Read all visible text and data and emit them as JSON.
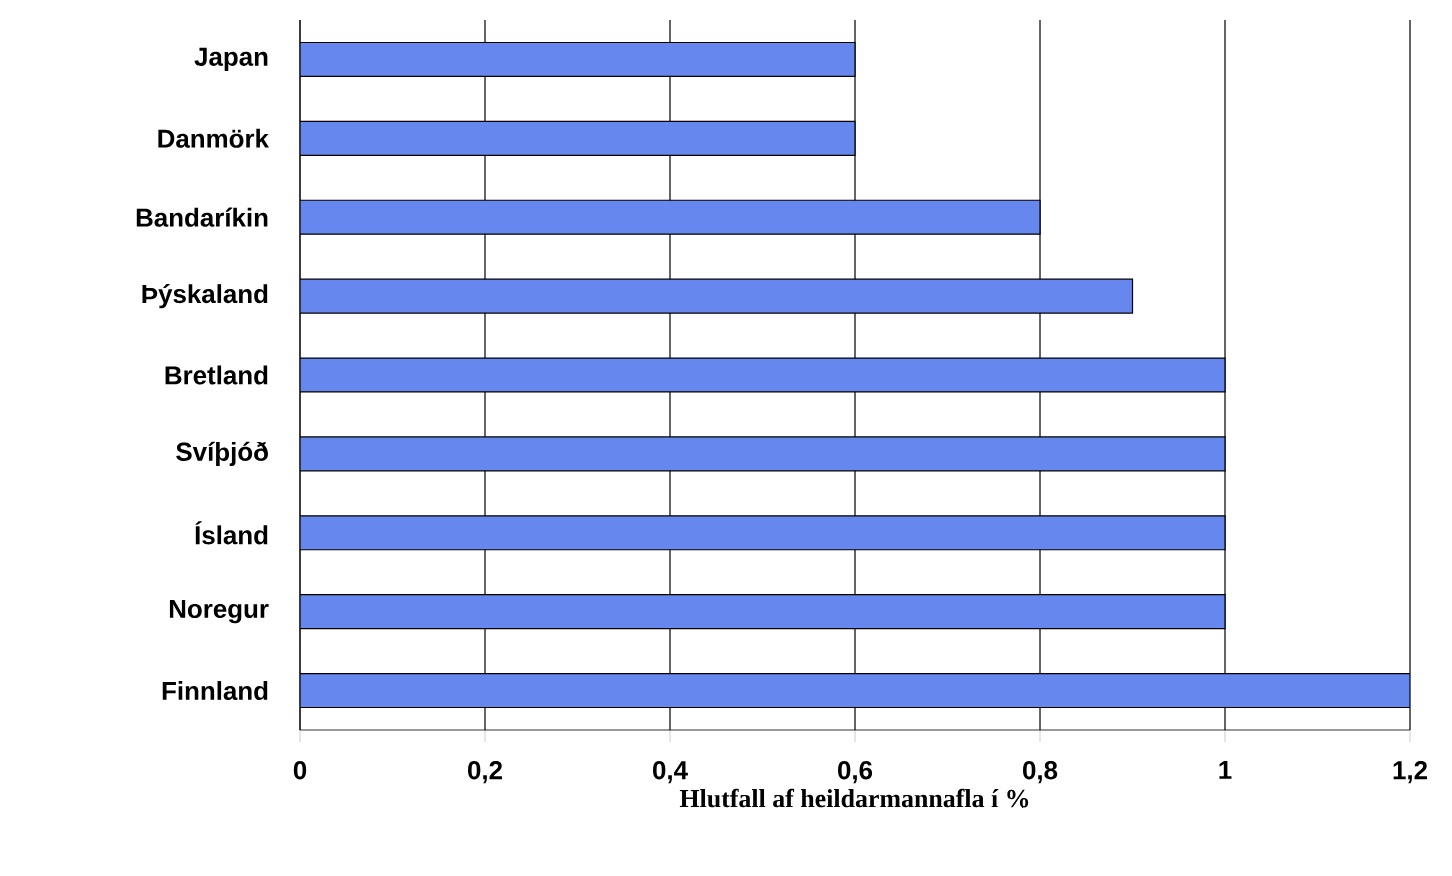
{
  "chart_data": {
    "type": "bar",
    "orientation": "horizontal",
    "categories": [
      "Japan",
      "Danmörk",
      "Bandaríkin",
      "Þýskaland",
      "Bretland",
      "Svíþjóð",
      "Ísland",
      "Noregur",
      "Finnland"
    ],
    "values": [
      0.6,
      0.6,
      0.8,
      0.9,
      1,
      1,
      1,
      1,
      1.2
    ],
    "color": "#6688ee",
    "xlabel": "Hlutfall af heildarmannafla í %",
    "xlim": [
      0,
      1.2
    ],
    "xticks": [
      0,
      {
        "value": 0.2,
        "label": "0,2"
      },
      {
        "value": 0.4,
        "label": "0,4"
      },
      {
        "value": 0.6,
        "label": "0,6"
      },
      {
        "value": 0.8,
        "label": "0,8"
      },
      1,
      {
        "value": 1.2,
        "label": "1,2"
      }
    ],
    "grid": "x"
  }
}
